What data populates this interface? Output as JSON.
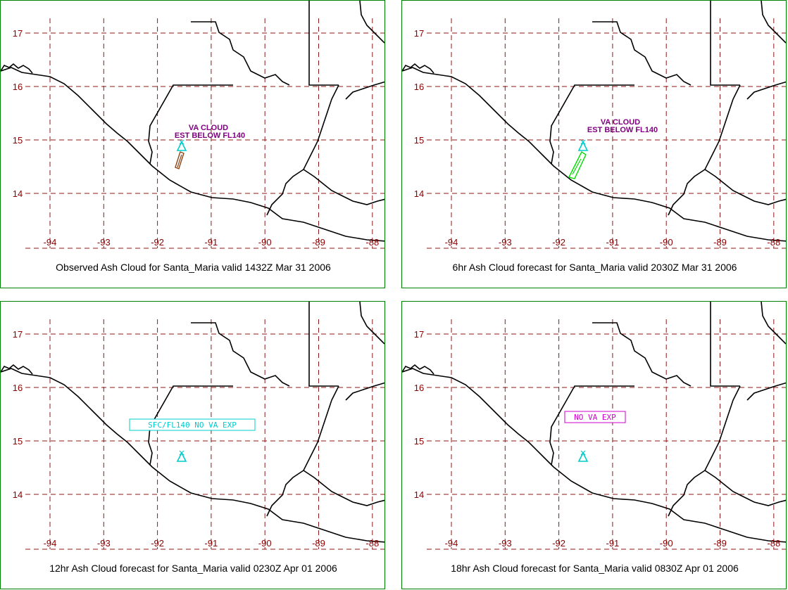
{
  "map": {
    "lon_ticks": [
      "-94",
      "-93",
      "-92",
      "-91",
      "-90",
      "-89",
      "-88"
    ],
    "lat_ticks": [
      "17",
      "16",
      "15",
      "14"
    ],
    "grid_color": "#8b1a1a",
    "tick_color": "#8b0000",
    "border_color": "#008000"
  },
  "panels": [
    {
      "caption": "Observed Ash Cloud for Santa_Maria valid 1432Z Mar 31 2006",
      "annotation_line1": "VA CLOUD",
      "annotation_line2": "EST BELOW FL140",
      "annotation_color": "#800080",
      "volcano_icon": "volcano-triangle-icon",
      "volcano_color": "#00cccc",
      "plume_color": "#8b4513"
    },
    {
      "caption": "6hr Ash Cloud forecast for Santa_Maria valid 2030Z Mar 31 2006",
      "annotation_line1": "VA CLOUD",
      "annotation_line2": "EST BELOW FL140",
      "annotation_color": "#800080",
      "volcano_icon": "volcano-triangle-icon",
      "volcano_color": "#00cccc",
      "plume_color": "#00dd00"
    },
    {
      "caption": "12hr Ash Cloud forecast for Santa_Maria valid 0230Z Apr 01 2006",
      "box_label": "SFC/FL140 NO VA EXP",
      "box_color": "#00cccc",
      "volcano_icon": "volcano-triangle-icon",
      "volcano_color": "#00cccc"
    },
    {
      "caption": "18hr Ash Cloud forecast for Santa_Maria valid 0830Z Apr 01 2006",
      "box_label": "NO VA EXP",
      "box_color": "#cc00cc",
      "volcano_icon": "volcano-triangle-icon",
      "volcano_color": "#00cccc"
    }
  ]
}
